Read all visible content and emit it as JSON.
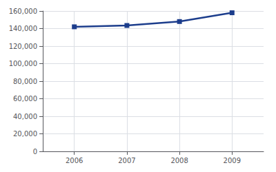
{
  "chart_data": {
    "type": "line",
    "x": [
      2006,
      2007,
      2008,
      2009
    ],
    "values": [
      142000,
      143500,
      148000,
      158000
    ],
    "color": "#1c3d8c",
    "marker": "square",
    "xlim": [
      2005.4,
      2009.6
    ],
    "xticks": [
      2006,
      2007,
      2008,
      2009
    ],
    "ylim": [
      0,
      160000
    ],
    "yticks": [
      0,
      {
        "value": 20000,
        "label": "20,000"
      },
      {
        "value": 40000,
        "label": "40,000"
      },
      {
        "value": 60000,
        "label": "60,000"
      },
      {
        "value": 80000,
        "label": "80,000"
      },
      {
        "value": 100000,
        "label": "100,000"
      },
      {
        "value": 120000,
        "label": "120,000"
      },
      {
        "value": 140000,
        "label": "140,000"
      },
      {
        "value": 160000,
        "label": "160,000"
      }
    ],
    "grid": true
  }
}
